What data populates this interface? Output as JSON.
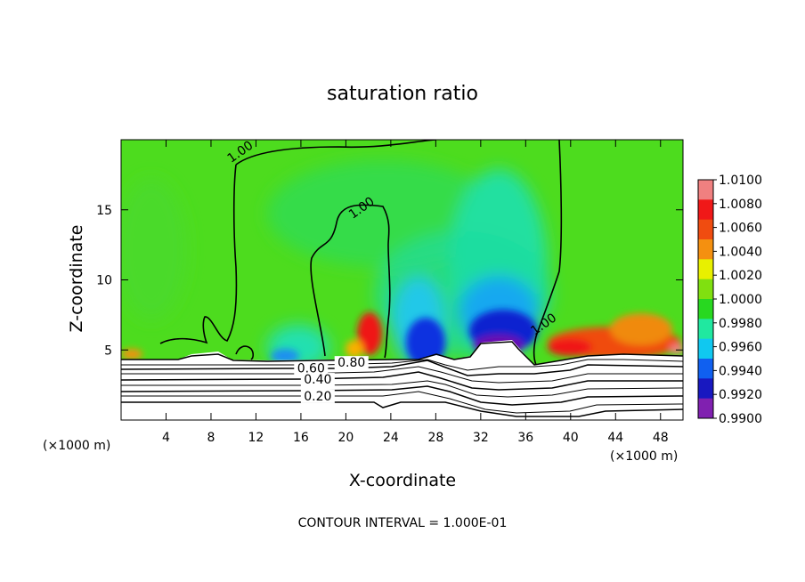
{
  "chart_data": {
    "type": "heatmap",
    "title": "saturation ratio",
    "xlabel": "X-coordinate",
    "ylabel": "Z-coordinate",
    "x_unit": "(×1000 m)",
    "xlim": [
      0,
      50
    ],
    "ylim": [
      0,
      20
    ],
    "xticks": [
      "4",
      "8",
      "12",
      "16",
      "20",
      "24",
      "28",
      "32",
      "36",
      "40",
      "44",
      "48"
    ],
    "xtick_values": [
      4,
      8,
      12,
      16,
      20,
      24,
      28,
      32,
      36,
      40,
      44,
      48
    ],
    "yticks": [
      "5",
      "10",
      "15"
    ],
    "ytick_values": [
      5,
      10,
      15
    ],
    "colorbar": {
      "labels": [
        "1.0100",
        "1.0080",
        "1.0060",
        "1.0040",
        "1.0020",
        "1.0000",
        "0.9980",
        "0.9960",
        "0.9940",
        "0.9920",
        "0.9900"
      ],
      "values": [
        1.01,
        1.008,
        1.006,
        1.004,
        1.002,
        1.0,
        0.998,
        0.996,
        0.994,
        0.992,
        0.99
      ],
      "colors": [
        "#f08080",
        "#f01818",
        "#f04c10",
        "#f49010",
        "#e8f000",
        "#80e010",
        "#28d820",
        "#20e8a0",
        "#10c8f0",
        "#1060f0",
        "#1818c0",
        "#8020b0"
      ]
    },
    "contour_labels": [
      {
        "text": "1.00",
        "x": 10.8,
        "z": 18.9
      },
      {
        "text": "1.00",
        "x": 21.6,
        "z": 14.9
      },
      {
        "text": "1.00",
        "x": 37.8,
        "z": 6.6
      },
      {
        "text": "0.60",
        "x": 16.9,
        "z": 3.4
      },
      {
        "text": "0.80",
        "x": 20.5,
        "z": 3.8
      },
      {
        "text": "0.40",
        "x": 17.5,
        "z": 2.6
      },
      {
        "text": "0.20",
        "x": 17.5,
        "z": 1.4
      }
    ],
    "annotation": "CONTOUR INTERVAL = 1.000E-01",
    "grid": false,
    "legend": "colorbar-right"
  }
}
